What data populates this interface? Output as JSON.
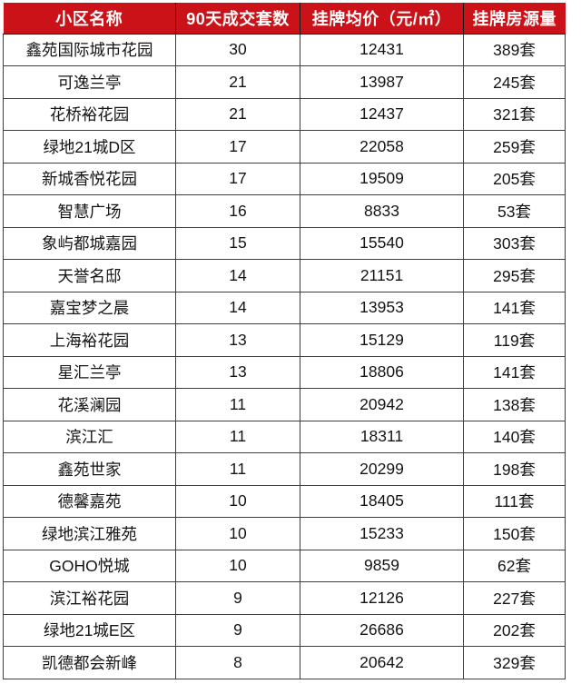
{
  "chart_data": {
    "type": "table",
    "columns": [
      "小区名称",
      "90天成交套数",
      "挂牌均价（元/㎡）",
      "挂牌房源量"
    ],
    "listings_unit": "套",
    "rows": [
      {
        "name": "鑫苑国际城市花园",
        "deals_90d": 30,
        "avg_price": 12431,
        "listings": 389
      },
      {
        "name": "可逸兰亭",
        "deals_90d": 21,
        "avg_price": 13987,
        "listings": 245
      },
      {
        "name": "花桥裕花园",
        "deals_90d": 21,
        "avg_price": 12437,
        "listings": 321
      },
      {
        "name": "绿地21城D区",
        "deals_90d": 17,
        "avg_price": 22058,
        "listings": 259
      },
      {
        "name": "新城香悦花园",
        "deals_90d": 17,
        "avg_price": 19509,
        "listings": 205
      },
      {
        "name": "智慧广场",
        "deals_90d": 16,
        "avg_price": 8833,
        "listings": 53
      },
      {
        "name": "象屿都城嘉园",
        "deals_90d": 15,
        "avg_price": 15540,
        "listings": 303
      },
      {
        "name": "天誉名邸",
        "deals_90d": 14,
        "avg_price": 21151,
        "listings": 295
      },
      {
        "name": "嘉宝梦之晨",
        "deals_90d": 14,
        "avg_price": 13953,
        "listings": 141
      },
      {
        "name": "上海裕花园",
        "deals_90d": 13,
        "avg_price": 15129,
        "listings": 119
      },
      {
        "name": "星汇兰亭",
        "deals_90d": 13,
        "avg_price": 18806,
        "listings": 141
      },
      {
        "name": "花溪澜园",
        "deals_90d": 11,
        "avg_price": 20942,
        "listings": 138
      },
      {
        "name": "滨江汇",
        "deals_90d": 11,
        "avg_price": 18311,
        "listings": 140
      },
      {
        "name": "鑫苑世家",
        "deals_90d": 11,
        "avg_price": 20299,
        "listings": 198
      },
      {
        "name": "德馨嘉苑",
        "deals_90d": 10,
        "avg_price": 18405,
        "listings": 111
      },
      {
        "name": "绿地滨江雅苑",
        "deals_90d": 10,
        "avg_price": 15233,
        "listings": 150
      },
      {
        "name": "GOHO悦城",
        "deals_90d": 10,
        "avg_price": 9859,
        "listings": 62
      },
      {
        "name": "滨江裕花园",
        "deals_90d": 9,
        "avg_price": 12126,
        "listings": 227
      },
      {
        "name": "绿地21城E区",
        "deals_90d": 9,
        "avg_price": 26686,
        "listings": 202
      },
      {
        "name": "凯德都会新峰",
        "deals_90d": 8,
        "avg_price": 20642,
        "listings": 329
      }
    ],
    "colors": {
      "header_bg": "#cb1218",
      "header_text": "#ffffff",
      "header_divider": "#141414",
      "border": "#3e3e3e",
      "body_text": "#141414",
      "page_bg": "#ffffff"
    }
  }
}
